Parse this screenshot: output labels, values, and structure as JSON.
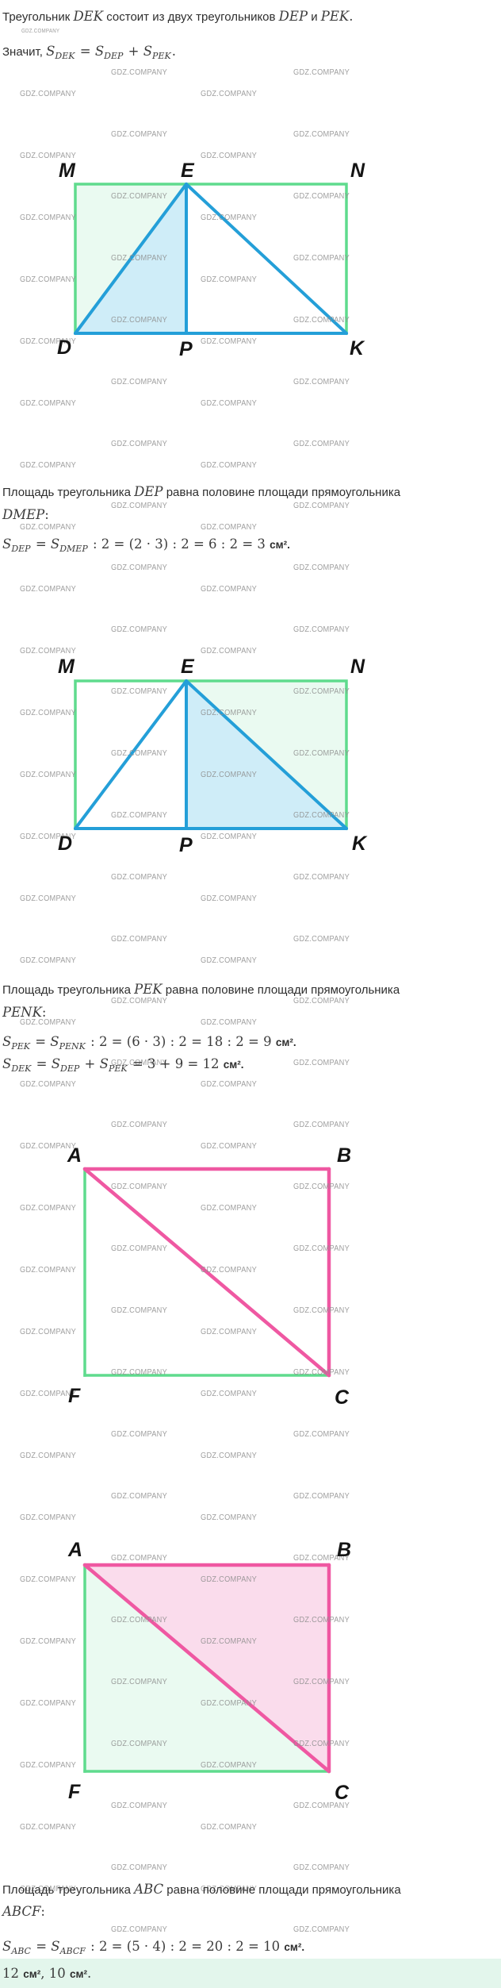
{
  "watermark": "GDZ.COMPANY",
  "colors": {
    "green_border": "#5fdb8d",
    "green_fill": "#eafaf1",
    "blue_line": "#249fd8",
    "blue_fill": "#cfedf8",
    "pink_line": "#ef58a2",
    "pink_fill": "#fadcec",
    "answer_bg": "#e3f6ec"
  },
  "paragraphs": {
    "intro1": [
      {
        "k": "t",
        "v": "Треугольник "
      },
      {
        "k": "i",
        "v": "DEK"
      },
      {
        "k": "t",
        "v": " состоит из двух треугольников "
      },
      {
        "k": "i",
        "v": "DEP"
      },
      {
        "k": "t",
        "v": " и "
      },
      {
        "k": "i",
        "v": "PEK"
      },
      {
        "k": "m",
        "v": "."
      }
    ],
    "intro2": [
      {
        "k": "t",
        "v": "Значит, "
      },
      {
        "k": "i",
        "v": "S"
      },
      {
        "k": "s",
        "v": "DEK"
      },
      {
        "k": "m",
        "v": " = "
      },
      {
        "k": "i",
        "v": "S"
      },
      {
        "k": "s",
        "v": "DEP"
      },
      {
        "k": "m",
        "v": " + "
      },
      {
        "k": "i",
        "v": "S"
      },
      {
        "k": "s",
        "v": "PEK"
      },
      {
        "k": "m",
        "v": "."
      }
    ],
    "dep_line1": [
      {
        "k": "t",
        "v": "Площадь треугольника "
      },
      {
        "k": "i",
        "v": "DEP"
      },
      {
        "k": "t",
        "v": " равна половине площади прямоугольника"
      }
    ],
    "dep_line2": [
      {
        "k": "i",
        "v": "DMEP"
      },
      {
        "k": "m",
        "v": ":"
      }
    ],
    "dep_formula": [
      {
        "k": "i",
        "v": "S"
      },
      {
        "k": "s",
        "v": "DEP"
      },
      {
        "k": "m",
        "v": " = "
      },
      {
        "k": "i",
        "v": "S"
      },
      {
        "k": "s",
        "v": "DMEP"
      },
      {
        "k": "m",
        "v": " : 2 = (2 · 3) : 2 = 6 : 2 = 3 "
      },
      {
        "k": "u",
        "v": "см²."
      }
    ],
    "pek_line1": [
      {
        "k": "t",
        "v": "Площадь треугольника "
      },
      {
        "k": "i",
        "v": "PEK"
      },
      {
        "k": "t",
        "v": " равна половине площади прямоугольника"
      }
    ],
    "pek_line2": [
      {
        "k": "i",
        "v": "PENK"
      },
      {
        "k": "m",
        "v": ":"
      }
    ],
    "pek_formula1": [
      {
        "k": "i",
        "v": "S"
      },
      {
        "k": "s",
        "v": "PEK"
      },
      {
        "k": "m",
        "v": " = "
      },
      {
        "k": "i",
        "v": "S"
      },
      {
        "k": "s",
        "v": "PENK"
      },
      {
        "k": "m",
        "v": " : 2 = (6 · 3) : 2 = 18 : 2 = 9 "
      },
      {
        "k": "u",
        "v": "см²."
      }
    ],
    "pek_formula2": [
      {
        "k": "i",
        "v": "S"
      },
      {
        "k": "s",
        "v": "DEK"
      },
      {
        "k": "m",
        "v": " = "
      },
      {
        "k": "i",
        "v": "S"
      },
      {
        "k": "s",
        "v": "DEP"
      },
      {
        "k": "m",
        "v": " + "
      },
      {
        "k": "i",
        "v": "S"
      },
      {
        "k": "s",
        "v": "PEK"
      },
      {
        "k": "m",
        "v": " = 3 + 9 = 12 "
      },
      {
        "k": "u",
        "v": "см²."
      }
    ],
    "abc_line1": [
      {
        "k": "t",
        "v": "Площадь треугольника "
      },
      {
        "k": "i",
        "v": "ABC"
      },
      {
        "k": "t",
        "v": " равна половине площади прямоугольника"
      }
    ],
    "abc_line2": [
      {
        "k": "i",
        "v": "ABCF"
      },
      {
        "k": "m",
        "v": ":"
      }
    ],
    "abc_formula": [
      {
        "k": "i",
        "v": "S"
      },
      {
        "k": "s",
        "v": "ABC"
      },
      {
        "k": "m",
        "v": " = "
      },
      {
        "k": "i",
        "v": "S"
      },
      {
        "k": "s",
        "v": "ABCF"
      },
      {
        "k": "m",
        "v": " : 2 = (5 · 4) : 2 = 20 : 2 = 10 "
      },
      {
        "k": "u",
        "v": "см²."
      }
    ],
    "answer": [
      {
        "k": "m",
        "v": "12 "
      },
      {
        "k": "u",
        "v": "см²"
      },
      {
        "k": "m",
        "v": ", 10 "
      },
      {
        "k": "u",
        "v": "см²"
      },
      {
        "k": "m",
        "v": "."
      }
    ]
  },
  "figures": {
    "diagram1": {
      "vertices": {
        "M": "M",
        "E": "E",
        "N": "N",
        "D": "D",
        "P": "P",
        "K": "K"
      }
    },
    "diagram2": {
      "vertices": {
        "M": "M",
        "E": "E",
        "N": "N",
        "D": "D",
        "P": "P",
        "K": "K"
      }
    },
    "diagram3": {
      "vertices": {
        "A": "A",
        "B": "B",
        "F": "F",
        "C": "C"
      }
    },
    "diagram4": {
      "vertices": {
        "A": "A",
        "B": "B",
        "F": "F",
        "C": "C"
      }
    }
  }
}
